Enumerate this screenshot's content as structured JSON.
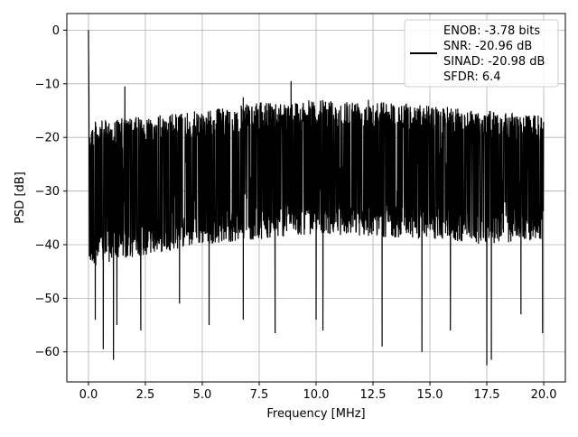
{
  "chart_data": {
    "type": "line",
    "title": "",
    "xlabel": "Frequency [MHz]",
    "ylabel": "PSD [dB]",
    "xlim": [
      -0.95,
      20.95
    ],
    "ylim": [
      -65.6,
      3.1
    ],
    "xticks": [
      0.0,
      2.5,
      5.0,
      7.5,
      10.0,
      12.5,
      15.0,
      17.5,
      20.0
    ],
    "xtick_labels": [
      "0.0",
      "2.5",
      "5.0",
      "7.5",
      "10.0",
      "12.5",
      "15.0",
      "17.5",
      "20.0"
    ],
    "yticks": [
      0,
      -10,
      -20,
      -30,
      -40,
      -50,
      -60
    ],
    "ytick_labels": [
      "0",
      "−10",
      "−20",
      "−30",
      "−40",
      "−50",
      "−60"
    ],
    "grid": true,
    "legend_placement": "upper right",
    "series_color": "#000000",
    "legend": {
      "lines": [
        "ENOB: -3.78 bits",
        "SNR: -20.96 dB",
        "SINAD: -20.98 dB",
        "SFDR: 6.4"
      ]
    },
    "series": [
      {
        "x_range": [
          0.0,
          20.0
        ],
        "peak": [
          0.0,
          0.0
        ],
        "spurs": [
          [
            0.05,
            -20.0
          ],
          [
            1.6,
            -10.5
          ],
          [
            8.9,
            -9.5
          ],
          [
            6.8,
            -12.5
          ],
          [
            12.3,
            -13.0
          ]
        ],
        "deep_nulls": [
          [
            0.3,
            -54.0
          ],
          [
            0.65,
            -59.5
          ],
          [
            1.1,
            -61.5
          ],
          [
            1.25,
            -55.0
          ],
          [
            2.3,
            -56.0
          ],
          [
            4.0,
            -51.0
          ],
          [
            5.3,
            -55.0
          ],
          [
            6.8,
            -54.0
          ],
          [
            8.2,
            -56.5
          ],
          [
            10.0,
            -54.0
          ],
          [
            10.3,
            -56.0
          ],
          [
            12.9,
            -59.0
          ],
          [
            14.65,
            -60.0
          ],
          [
            15.9,
            -56.0
          ],
          [
            17.5,
            -62.5
          ],
          [
            17.7,
            -61.5
          ],
          [
            19.0,
            -53.0
          ],
          [
            19.95,
            -56.5
          ]
        ],
        "upper_envelope": [
          [
            0.2,
            -17.0
          ],
          [
            2.5,
            -16.0
          ],
          [
            5.0,
            -15.0
          ],
          [
            7.5,
            -13.5
          ],
          [
            10.0,
            -13.0
          ],
          [
            12.5,
            -13.0
          ],
          [
            15.0,
            -14.0
          ],
          [
            17.5,
            -15.0
          ],
          [
            20.0,
            -16.0
          ]
        ],
        "lower_envelope": [
          [
            0.2,
            -44.0
          ],
          [
            2.5,
            -42.0
          ],
          [
            5.0,
            -40.0
          ],
          [
            7.5,
            -39.0
          ],
          [
            10.0,
            -38.0
          ],
          [
            12.5,
            -38.5
          ],
          [
            15.0,
            -39.0
          ],
          [
            17.5,
            -40.0
          ],
          [
            20.0,
            -39.0
          ]
        ]
      }
    ]
  }
}
